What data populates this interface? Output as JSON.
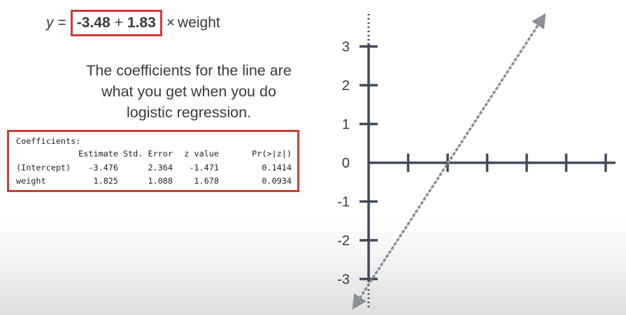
{
  "equation": {
    "y_symbol": "y",
    "equals": "=",
    "intercept": "-3.48",
    "plus": "+",
    "slope": "1.83",
    "times": "×",
    "variable": "weight"
  },
  "caption": {
    "line1": "The coefficients for the line are",
    "line2": "what you get when you do",
    "line3": "logistic regression."
  },
  "coefficients_table": {
    "title": "Coefficients:",
    "columns": [
      "",
      "Estimate",
      "Std. Error",
      "z value",
      "Pr(>|z|)"
    ],
    "rows": [
      {
        "name": "(Intercept)",
        "estimate": "-3.476",
        "std_error": "2.364",
        "z_value": "-1.471",
        "p_value": "0.1414"
      },
      {
        "name": "weight",
        "estimate": "1.825",
        "std_error": "1.088",
        "z_value": "1.678",
        "p_value": "0.0934"
      }
    ]
  },
  "graph": {
    "y_tick_labels": [
      "3",
      "2",
      "1",
      "0",
      "-1",
      "-2",
      "-3"
    ],
    "y_range": [
      -3,
      3
    ],
    "x_tick_count": 7,
    "line": {
      "intercept": -3.48,
      "slope": 1.83
    },
    "colors": {
      "axis": "#3f4a5a",
      "line": "#8a8f98",
      "highlight": "#d03a3a"
    }
  }
}
